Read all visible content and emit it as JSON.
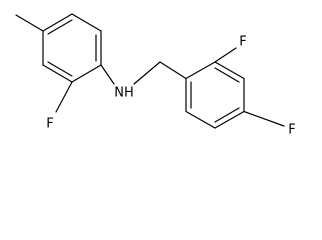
{
  "atoms": [
    {
      "label": "F"
    },
    {
      "label": "NH"
    },
    {
      "label": "F"
    },
    {
      "label": "F"
    }
  ]
}
